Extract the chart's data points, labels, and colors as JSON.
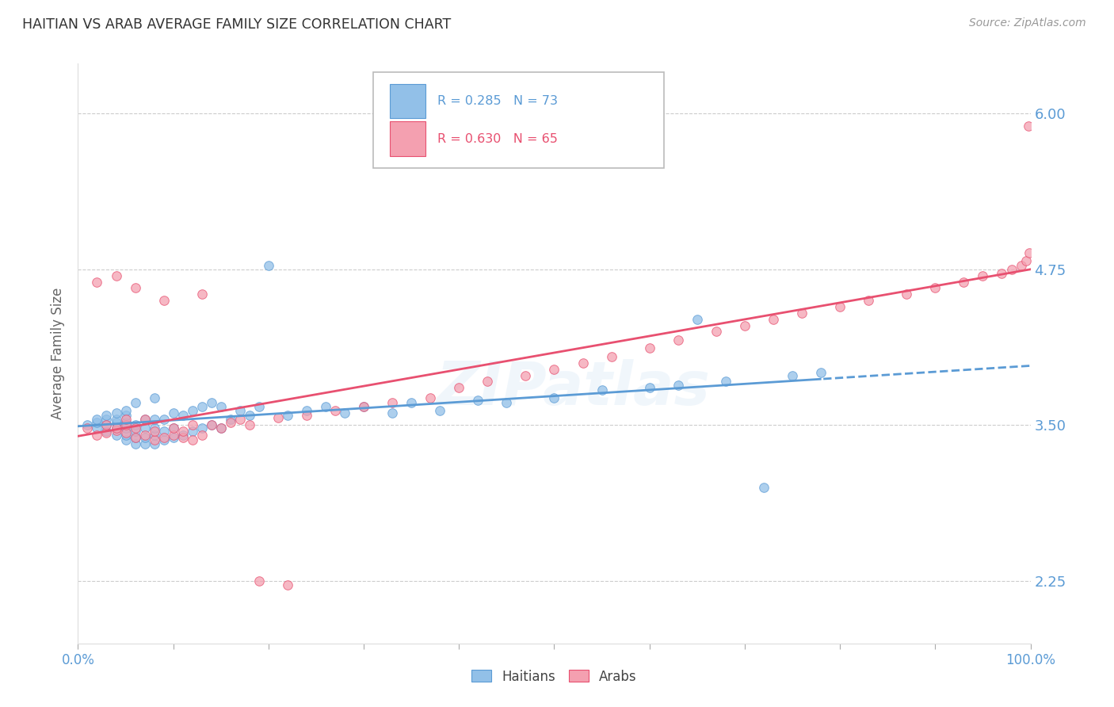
{
  "title": "HAITIAN VS ARAB AVERAGE FAMILY SIZE CORRELATION CHART",
  "source": "Source: ZipAtlas.com",
  "ylabel": "Average Family Size",
  "ytick_labels": [
    "2.25",
    "3.50",
    "4.75",
    "6.00"
  ],
  "ytick_values": [
    2.25,
    3.5,
    4.75,
    6.0
  ],
  "ymin": 1.75,
  "ymax": 6.4,
  "xmin": 0.0,
  "xmax": 1.0,
  "haitian_color": "#92c0e8",
  "arab_color": "#f4a0b0",
  "trendline_haitian_color": "#5b9bd5",
  "trendline_arab_color": "#e85070",
  "watermark": "ZIPatlas",
  "legend_haitian_R": "0.285",
  "legend_haitian_N": "73",
  "legend_arab_R": "0.630",
  "legend_arab_N": "65",
  "haitian_x": [
    0.01,
    0.02,
    0.02,
    0.02,
    0.03,
    0.03,
    0.03,
    0.03,
    0.04,
    0.04,
    0.04,
    0.04,
    0.04,
    0.05,
    0.05,
    0.05,
    0.05,
    0.05,
    0.05,
    0.06,
    0.06,
    0.06,
    0.06,
    0.06,
    0.07,
    0.07,
    0.07,
    0.07,
    0.08,
    0.08,
    0.08,
    0.08,
    0.08,
    0.09,
    0.09,
    0.09,
    0.1,
    0.1,
    0.1,
    0.11,
    0.11,
    0.12,
    0.12,
    0.13,
    0.13,
    0.14,
    0.14,
    0.15,
    0.15,
    0.16,
    0.17,
    0.18,
    0.19,
    0.2,
    0.22,
    0.24,
    0.26,
    0.28,
    0.3,
    0.33,
    0.35,
    0.38,
    0.42,
    0.45,
    0.5,
    0.55,
    0.6,
    0.63,
    0.65,
    0.68,
    0.72,
    0.75,
    0.78
  ],
  "haitian_y": [
    3.5,
    3.48,
    3.52,
    3.55,
    3.45,
    3.5,
    3.55,
    3.58,
    3.42,
    3.48,
    3.52,
    3.55,
    3.6,
    3.38,
    3.42,
    3.48,
    3.52,
    3.58,
    3.62,
    3.35,
    3.4,
    3.45,
    3.5,
    3.68,
    3.35,
    3.4,
    3.48,
    3.55,
    3.35,
    3.42,
    3.48,
    3.55,
    3.72,
    3.38,
    3.45,
    3.55,
    3.4,
    3.48,
    3.6,
    3.42,
    3.58,
    3.45,
    3.62,
    3.48,
    3.65,
    3.5,
    3.68,
    3.48,
    3.65,
    3.55,
    3.62,
    3.58,
    3.65,
    4.78,
    3.58,
    3.62,
    3.65,
    3.6,
    3.65,
    3.6,
    3.68,
    3.62,
    3.7,
    3.68,
    3.72,
    3.78,
    3.8,
    3.82,
    4.35,
    3.85,
    3.0,
    3.9,
    3.92
  ],
  "arab_x": [
    0.01,
    0.02,
    0.02,
    0.03,
    0.03,
    0.04,
    0.04,
    0.04,
    0.05,
    0.05,
    0.05,
    0.06,
    0.06,
    0.06,
    0.07,
    0.07,
    0.08,
    0.08,
    0.09,
    0.09,
    0.1,
    0.1,
    0.11,
    0.11,
    0.12,
    0.12,
    0.13,
    0.13,
    0.14,
    0.15,
    0.16,
    0.17,
    0.18,
    0.19,
    0.21,
    0.22,
    0.24,
    0.27,
    0.3,
    0.33,
    0.37,
    0.4,
    0.43,
    0.47,
    0.5,
    0.53,
    0.56,
    0.6,
    0.63,
    0.67,
    0.7,
    0.73,
    0.76,
    0.8,
    0.83,
    0.87,
    0.9,
    0.93,
    0.95,
    0.97,
    0.98,
    0.99,
    0.995,
    0.998,
    0.999
  ],
  "arab_y": [
    3.48,
    3.42,
    4.65,
    3.44,
    3.5,
    3.46,
    4.7,
    3.48,
    3.44,
    3.5,
    3.55,
    3.4,
    3.48,
    4.6,
    3.42,
    3.55,
    3.38,
    3.45,
    3.4,
    4.5,
    3.42,
    3.48,
    3.4,
    3.45,
    3.38,
    3.5,
    3.42,
    4.55,
    3.5,
    3.48,
    3.52,
    3.55,
    3.5,
    2.25,
    3.56,
    2.22,
    3.58,
    3.62,
    3.65,
    3.68,
    3.72,
    3.8,
    3.85,
    3.9,
    3.95,
    4.0,
    4.05,
    4.12,
    4.18,
    4.25,
    4.3,
    4.35,
    4.4,
    4.45,
    4.5,
    4.55,
    4.6,
    4.65,
    4.7,
    4.72,
    4.75,
    4.78,
    4.82,
    5.9,
    4.88
  ]
}
